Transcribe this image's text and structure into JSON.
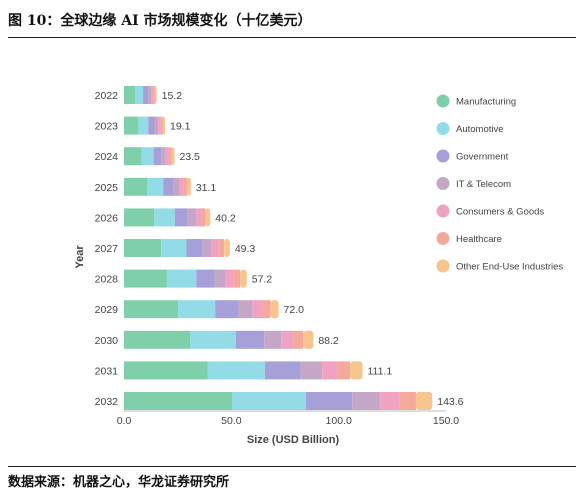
{
  "figure_title": "图 10：全球边缘 AI 市场规模变化（十亿美元）",
  "source_note": "数据来源：机器之心，华龙证券研究所",
  "chart_data": {
    "type": "bar",
    "orientation": "horizontal",
    "stacked": true,
    "xlabel": "Size (USD Billion)",
    "ylabel": "Year",
    "xlim": [
      0,
      150
    ],
    "xticks": [
      "0.0",
      "50.0",
      "100.0",
      "150.0"
    ],
    "grid": false,
    "legend_position": "right",
    "categories": [
      "2022",
      "2023",
      "2024",
      "2025",
      "2026",
      "2027",
      "2028",
      "2029",
      "2030",
      "2031",
      "2032"
    ],
    "totals": [
      15.2,
      19.1,
      23.5,
      31.1,
      40.2,
      49.3,
      57.2,
      72.0,
      88.2,
      111.1,
      143.6
    ],
    "total_labels": [
      "15.2",
      "19.1",
      "23.5",
      "31.1",
      "40.2",
      "49.3",
      "57.2",
      "72.0",
      "88.2",
      "111.1",
      "143.6"
    ],
    "series": [
      {
        "name": "Manufacturing",
        "color": "#7fcfab",
        "values": [
          5.3,
          6.7,
          8.2,
          10.9,
          14.1,
          17.3,
          20.0,
          25.2,
          30.9,
          38.9,
          50.3
        ]
      },
      {
        "name": "Automotive",
        "color": "#93dbe6",
        "values": [
          3.6,
          4.6,
          5.6,
          7.5,
          9.6,
          11.8,
          13.7,
          17.3,
          21.2,
          26.7,
          34.5
        ]
      },
      {
        "name": "Government",
        "color": "#a69fd8",
        "values": [
          2.3,
          2.9,
          3.5,
          4.7,
          6.0,
          7.4,
          8.6,
          10.8,
          13.2,
          16.7,
          21.5
        ]
      },
      {
        "name": "IT & Telecom",
        "color": "#c4a7c7",
        "values": [
          1.4,
          1.7,
          2.1,
          2.8,
          3.6,
          4.4,
          5.1,
          6.5,
          7.9,
          10.0,
          12.9
        ]
      },
      {
        "name": "Consumers & Goods",
        "color": "#f0a2c2",
        "values": [
          1.0,
          1.2,
          1.5,
          2.0,
          2.6,
          3.2,
          3.7,
          4.7,
          5.7,
          7.2,
          9.3
        ]
      },
      {
        "name": "Healthcare",
        "color": "#f4a99d",
        "values": [
          0.8,
          1.0,
          1.2,
          1.6,
          2.1,
          2.6,
          3.0,
          3.7,
          4.6,
          5.8,
          7.5
        ]
      },
      {
        "name": "Other End-Use Industries",
        "color": "#f8c48e",
        "values": [
          0.8,
          1.0,
          1.4,
          1.6,
          2.2,
          2.6,
          3.1,
          3.8,
          4.7,
          5.8,
          7.6
        ]
      }
    ]
  }
}
